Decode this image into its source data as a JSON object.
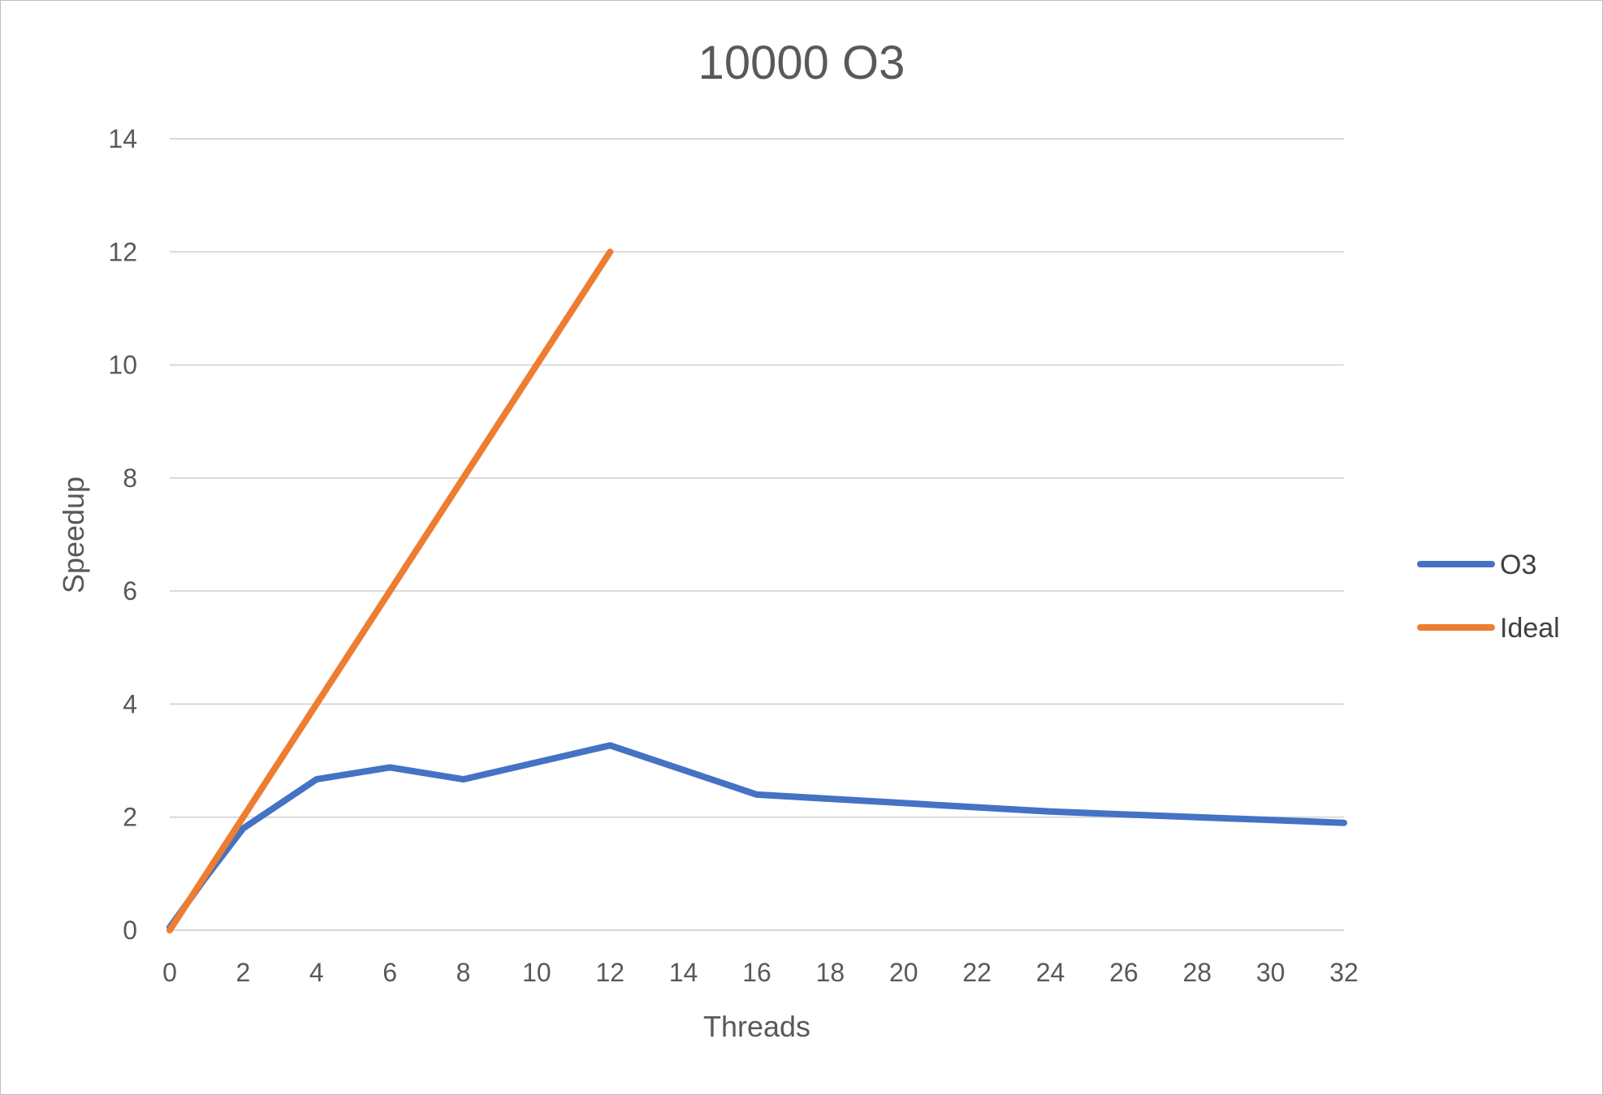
{
  "chart_data": {
    "type": "line",
    "title": "10000 O3",
    "xlabel": "Threads",
    "ylabel": "Speedup",
    "xlim": [
      0,
      32
    ],
    "ylim": [
      0,
      14
    ],
    "x_ticks": [
      0,
      2,
      4,
      6,
      8,
      10,
      12,
      14,
      16,
      18,
      20,
      22,
      24,
      26,
      28,
      30,
      32
    ],
    "y_ticks": [
      0,
      2,
      4,
      6,
      8,
      10,
      12,
      14
    ],
    "grid": true,
    "legend_position": "right",
    "series": [
      {
        "name": "O3",
        "color": "#4472c4",
        "points": [
          [
            0,
            0.05
          ],
          [
            1,
            0.95
          ],
          [
            2,
            1.8
          ],
          [
            4,
            2.67
          ],
          [
            6,
            2.88
          ],
          [
            8,
            2.67
          ],
          [
            12,
            3.27
          ],
          [
            16,
            2.4
          ],
          [
            24,
            2.1
          ],
          [
            32,
            1.9
          ]
        ]
      },
      {
        "name": "Ideal",
        "color": "#ed7d31",
        "points": [
          [
            0,
            0
          ],
          [
            12,
            12
          ]
        ]
      }
    ]
  }
}
